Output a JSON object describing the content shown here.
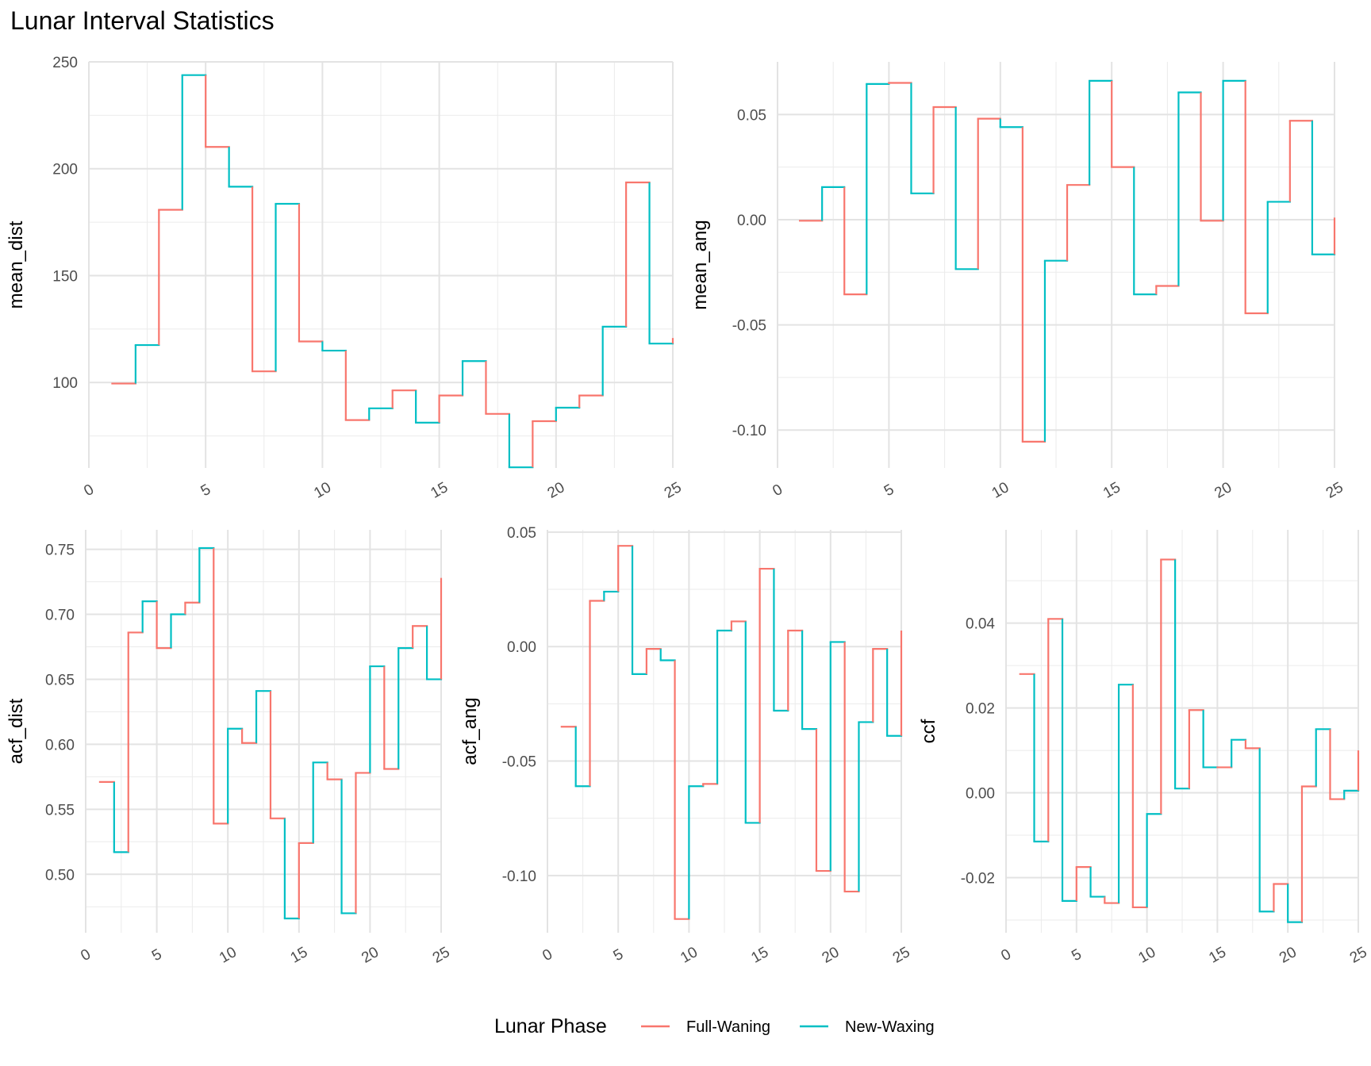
{
  "title": "Lunar Interval Statistics",
  "legend": {
    "title": "Lunar Phase",
    "placement": "bottom",
    "entries": [
      {
        "name": "Full-Waning",
        "color": "#F8766D"
      },
      {
        "name": "New-Waxing",
        "color": "#00BFC4"
      }
    ]
  },
  "chart_data": [
    {
      "type": "line",
      "step": true,
      "ylabel": "mean_dist",
      "xlabel": "",
      "xlim": [
        0,
        25
      ],
      "ylim": [
        60,
        250
      ],
      "xticks": [
        "0",
        "5",
        "10",
        "15",
        "20",
        "25"
      ],
      "yticks": [
        100,
        150,
        200,
        250
      ],
      "ytick_labels": [
        "100",
        "150",
        "200",
        "250"
      ],
      "x": [
        1,
        2,
        3,
        4,
        5,
        6,
        7,
        8,
        9,
        10,
        11,
        12,
        13,
        14,
        15,
        16,
        17,
        18,
        19,
        20,
        21,
        22,
        23,
        24,
        25
      ],
      "values": [
        99.5,
        117.5,
        180.8,
        243.8,
        210.2,
        191.6,
        105.2,
        183.6,
        119.2,
        114.9,
        82.4,
        87.9,
        96.3,
        81.2,
        93.9,
        110.0,
        85.3,
        60.3,
        81.9,
        88.2,
        93.9,
        126.1,
        193.6,
        118.2,
        120.8
      ],
      "phase": [
        "Full-Waning",
        "New-Waxing",
        "Full-Waning",
        "New-Waxing",
        "Full-Waning",
        "New-Waxing",
        "Full-Waning",
        "New-Waxing",
        "Full-Waning",
        "New-Waxing",
        "Full-Waning",
        "New-Waxing",
        "Full-Waning",
        "New-Waxing",
        "Full-Waning",
        "New-Waxing",
        "Full-Waning",
        "New-Waxing",
        "Full-Waning",
        "New-Waxing",
        "Full-Waning",
        "New-Waxing",
        "Full-Waning",
        "New-Waxing",
        "Full-Waning"
      ]
    },
    {
      "type": "line",
      "step": true,
      "ylabel": "mean_ang",
      "xlabel": "",
      "xlim": [
        0,
        25
      ],
      "ylim": [
        -0.118,
        0.075
      ],
      "xticks": [
        "0",
        "5",
        "10",
        "15",
        "20",
        "25"
      ],
      "yticks": [
        -0.1,
        -0.05,
        0,
        0.05
      ],
      "ytick_labels": [
        "-0.10",
        "-0.05",
        "0.00",
        "0.05"
      ],
      "x": [
        1,
        2,
        3,
        4,
        5,
        6,
        7,
        8,
        9,
        10,
        11,
        12,
        13,
        14,
        15,
        16,
        17,
        18,
        19,
        20,
        21,
        22,
        23,
        24,
        25
      ],
      "values": [
        -0.0005,
        0.0155,
        -0.0355,
        0.0645,
        0.065,
        0.0125,
        0.0535,
        -0.0235,
        0.048,
        0.044,
        -0.1055,
        -0.0195,
        0.0165,
        0.066,
        0.025,
        -0.0355,
        -0.0315,
        0.0605,
        -0.0005,
        0.066,
        -0.0445,
        0.0085,
        0.047,
        -0.0165,
        0.001
      ],
      "phase": [
        "Full-Waning",
        "New-Waxing",
        "Full-Waning",
        "New-Waxing",
        "Full-Waning",
        "New-Waxing",
        "Full-Waning",
        "New-Waxing",
        "Full-Waning",
        "New-Waxing",
        "Full-Waning",
        "New-Waxing",
        "Full-Waning",
        "New-Waxing",
        "Full-Waning",
        "New-Waxing",
        "Full-Waning",
        "New-Waxing",
        "Full-Waning",
        "New-Waxing",
        "Full-Waning",
        "New-Waxing",
        "Full-Waning",
        "New-Waxing",
        "Full-Waning"
      ]
    },
    {
      "type": "line",
      "step": true,
      "ylabel": "acf_dist",
      "xlabel": "",
      "xlim": [
        0,
        25
      ],
      "ylim": [
        0.455,
        0.765
      ],
      "xticks": [
        "0",
        "5",
        "10",
        "15",
        "20",
        "25"
      ],
      "yticks": [
        0.5,
        0.55,
        0.6,
        0.65,
        0.7,
        0.75
      ],
      "ytick_labels": [
        "0.50",
        "0.55",
        "0.60",
        "0.65",
        "0.70",
        "0.75"
      ],
      "x": [
        1,
        2,
        3,
        4,
        5,
        6,
        7,
        8,
        9,
        10,
        11,
        12,
        13,
        14,
        15,
        16,
        17,
        18,
        19,
        20,
        21,
        22,
        23,
        24,
        25
      ],
      "values": [
        0.571,
        0.517,
        0.686,
        0.71,
        0.674,
        0.7,
        0.709,
        0.751,
        0.539,
        0.612,
        0.601,
        0.641,
        0.543,
        0.466,
        0.524,
        0.586,
        0.573,
        0.47,
        0.578,
        0.66,
        0.581,
        0.674,
        0.691,
        0.65,
        0.728
      ],
      "phase": [
        "Full-Waning",
        "New-Waxing",
        "Full-Waning",
        "New-Waxing",
        "Full-Waning",
        "New-Waxing",
        "Full-Waning",
        "New-Waxing",
        "Full-Waning",
        "New-Waxing",
        "Full-Waning",
        "New-Waxing",
        "Full-Waning",
        "New-Waxing",
        "Full-Waning",
        "New-Waxing",
        "Full-Waning",
        "New-Waxing",
        "Full-Waning",
        "New-Waxing",
        "Full-Waning",
        "New-Waxing",
        "Full-Waning",
        "New-Waxing",
        "Full-Waning"
      ]
    },
    {
      "type": "line",
      "step": true,
      "ylabel": "acf_ang",
      "xlabel": "",
      "xlim": [
        0,
        25
      ],
      "ylim": [
        -0.125,
        0.051
      ],
      "xticks": [
        "0",
        "5",
        "10",
        "15",
        "20",
        "25"
      ],
      "yticks": [
        -0.1,
        -0.05,
        0,
        0.05
      ],
      "ytick_labels": [
        "-0.10",
        "-0.05",
        "0.00",
        "0.05"
      ],
      "x": [
        1,
        2,
        3,
        4,
        5,
        6,
        7,
        8,
        9,
        10,
        11,
        12,
        13,
        14,
        15,
        16,
        17,
        18,
        19,
        20,
        21,
        22,
        23,
        24,
        25
      ],
      "values": [
        -0.035,
        -0.061,
        0.02,
        0.024,
        0.044,
        -0.012,
        -0.001,
        -0.006,
        -0.119,
        -0.061,
        -0.06,
        0.007,
        0.011,
        -0.077,
        0.034,
        -0.028,
        0.007,
        -0.036,
        -0.098,
        0.002,
        -0.107,
        -0.033,
        -0.001,
        -0.039,
        0.007
      ],
      "phase": [
        "Full-Waning",
        "New-Waxing",
        "Full-Waning",
        "New-Waxing",
        "Full-Waning",
        "New-Waxing",
        "Full-Waning",
        "New-Waxing",
        "Full-Waning",
        "New-Waxing",
        "Full-Waning",
        "New-Waxing",
        "Full-Waning",
        "New-Waxing",
        "Full-Waning",
        "New-Waxing",
        "Full-Waning",
        "New-Waxing",
        "Full-Waning",
        "New-Waxing",
        "Full-Waning",
        "New-Waxing",
        "Full-Waning",
        "New-Waxing",
        "Full-Waning"
      ]
    },
    {
      "type": "line",
      "step": true,
      "ylabel": "ccf",
      "xlabel": "",
      "xlim": [
        0,
        25
      ],
      "ylim": [
        -0.033,
        0.062
      ],
      "xticks": [
        "0",
        "5",
        "10",
        "15",
        "20",
        "25"
      ],
      "yticks": [
        -0.02,
        0,
        0.02,
        0.04
      ],
      "ytick_labels": [
        "-0.02",
        "0.00",
        "0.02",
        "0.04"
      ],
      "x": [
        1,
        2,
        3,
        4,
        5,
        6,
        7,
        8,
        9,
        10,
        11,
        12,
        13,
        14,
        15,
        16,
        17,
        18,
        19,
        20,
        21,
        22,
        23,
        24,
        25
      ],
      "values": [
        0.028,
        -0.0115,
        0.041,
        -0.0255,
        -0.0175,
        -0.0245,
        -0.026,
        0.0255,
        -0.027,
        -0.005,
        0.055,
        0.001,
        0.0195,
        0.006,
        0.006,
        0.0125,
        0.0105,
        -0.028,
        -0.0215,
        -0.0305,
        0.0015,
        0.015,
        -0.0015,
        0.0005,
        0.01
      ],
      "phase": [
        "Full-Waning",
        "New-Waxing",
        "Full-Waning",
        "New-Waxing",
        "Full-Waning",
        "New-Waxing",
        "Full-Waning",
        "New-Waxing",
        "Full-Waning",
        "New-Waxing",
        "Full-Waning",
        "New-Waxing",
        "Full-Waning",
        "New-Waxing",
        "Full-Waning",
        "New-Waxing",
        "Full-Waning",
        "New-Waxing",
        "Full-Waning",
        "New-Waxing",
        "Full-Waning",
        "New-Waxing",
        "Full-Waning",
        "New-Waxing",
        "Full-Waning"
      ]
    }
  ]
}
